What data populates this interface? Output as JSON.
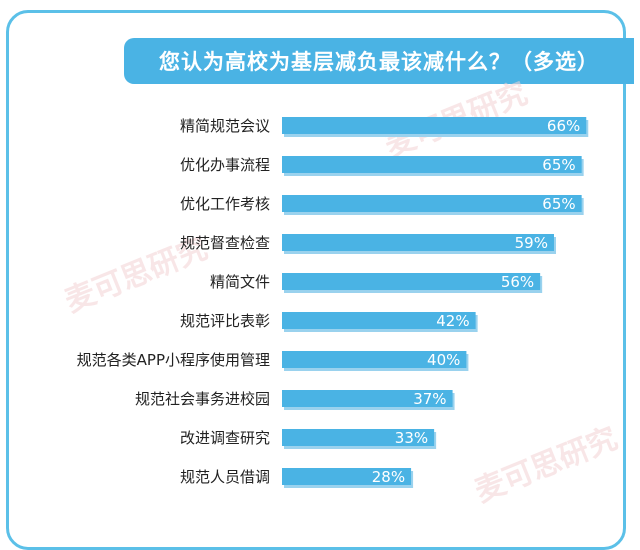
{
  "title": "您认为高校为基层减负最该减什么？（多选）",
  "watermark": "麦可思研究",
  "colors": {
    "bar": "#4ab3e4",
    "bar_shadow": "#9ad2ee",
    "frame": "#5bc0e8",
    "title_bg": "#4ab3e4"
  },
  "chart_data": {
    "type": "bar",
    "orientation": "horizontal",
    "title": "您认为高校为基层减负最该减什么？（多选）",
    "categories": [
      "精简规范会议",
      "优化办事流程",
      "优化工作考核",
      "规范督查检查",
      "精简文件",
      "规范评比表彰",
      "规范各类APP小程序使用管理",
      "规范社会事务进校园",
      "改进调查研究",
      "规范人员借调"
    ],
    "values": [
      66,
      65,
      65,
      59,
      56,
      42,
      40,
      37,
      33,
      28
    ],
    "value_labels": [
      "66%",
      "65%",
      "65%",
      "59%",
      "56%",
      "42%",
      "40%",
      "37%",
      "33%",
      "28%"
    ],
    "unit": "%",
    "xlim": [
      0,
      100
    ],
    "grid": false,
    "legend": "none"
  }
}
